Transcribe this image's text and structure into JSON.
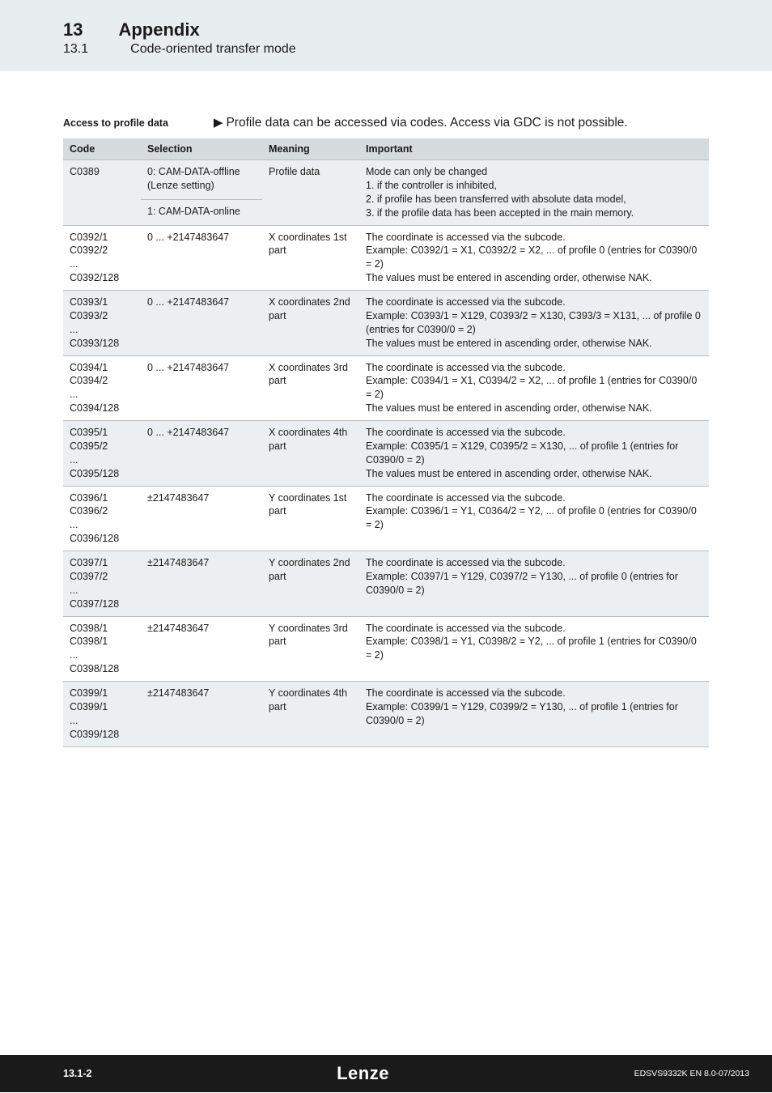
{
  "header": {
    "chapter_num": "13",
    "chapter_title": "Appendix",
    "section_num": "13.1",
    "section_title": "Code-oriented transfer mode"
  },
  "access": {
    "label": "Access to profile data",
    "text": "Profile data can be accessed via codes. Access via GDC is not possible."
  },
  "table": {
    "headers": {
      "code": "Code",
      "selection": "Selection",
      "meaning": "Meaning",
      "important": "Important"
    },
    "rows": [
      {
        "alt": true,
        "code": "C0389",
        "selection_a": "0: CAM-DATA-offline (Lenze setting)",
        "selection_b": "1: CAM-DATA-online",
        "meaning": "Profile data",
        "important": "Mode can only be changed\n1.  if the controller is inhibited,\n2.  if profile has been transferred with absolute data model,\n3.  if the profile data has been accepted in the main memory."
      },
      {
        "alt": false,
        "code": "C0392/1\nC0392/2\n...\nC0392/128",
        "selection": "0 ... +2147483647",
        "meaning": "X coordinates 1st part",
        "important": "The coordinate is accessed via the subcode.\nExample: C0392/1 = X1, C0392/2 = X2, ... of profile 0 (entries for C0390/0 = 2)\nThe values must be entered in ascending order, otherwise NAK."
      },
      {
        "alt": true,
        "code": "C0393/1\nC0393/2\n...\nC0393/128",
        "selection": "0 ... +2147483647",
        "meaning": "X coordinates 2nd part",
        "important": "The coordinate is accessed via the subcode.\nExample: C0393/1 = X129, C0393/2 = X130, C393/3 = X131, ... of profile 0 (entries for C0390/0 = 2)\nThe values must be entered in ascending order, otherwise NAK."
      },
      {
        "alt": false,
        "code": "C0394/1\nC0394/2\n...\nC0394/128",
        "selection": "0 ... +2147483647",
        "meaning": "X coordinates 3rd part",
        "important": "The coordinate is accessed via the subcode.\nExample: C0394/1 = X1, C0394/2 = X2, ... of profile 1 (entries for C0390/0 = 2)\nThe values must be entered in ascending order, otherwise NAK."
      },
      {
        "alt": true,
        "code": "C0395/1\nC0395/2\n...\nC0395/128",
        "selection": "0 ... +2147483647",
        "meaning": "X coordinates 4th part",
        "important": "The coordinate is accessed via the subcode.\nExample: C0395/1 = X129, C0395/2 = X130, ... of profile 1 (entries for C0390/0 = 2)\nThe values must be entered in ascending order, otherwise NAK."
      },
      {
        "alt": false,
        "code": "C0396/1\nC0396/2\n...\nC0396/128",
        "selection": "±2147483647",
        "meaning": "Y coordinates 1st part",
        "important": "The coordinate is accessed via the subcode.\nExample: C0396/1 = Y1, C0364/2 = Y2, ... of profile 0 (entries for C0390/0 = 2)"
      },
      {
        "alt": true,
        "code": "C0397/1\nC0397/2\n...\nC0397/128",
        "selection": "±2147483647",
        "meaning": "Y coordinates 2nd part",
        "important": "The coordinate is accessed via the subcode.\nExample: C0397/1 = Y129, C0397/2 = Y130, ... of profile 0 (entries for C0390/0 = 2)"
      },
      {
        "alt": false,
        "code": "C0398/1\nC0398/1\n...\nC0398/128",
        "selection": "±2147483647",
        "meaning": "Y coordinates 3rd part",
        "important": "The coordinate is accessed via the subcode.\nExample: C0398/1 = Y1, C0398/2 = Y2, ... of profile 1 (entries for C0390/0 = 2)"
      },
      {
        "alt": true,
        "code": "C0399/1\nC0399/1\n...\nC0399/128",
        "selection": "±2147483647",
        "meaning": "Y coordinates 4th part",
        "important": "The coordinate is accessed via the subcode.\nExample: C0399/1 = Y129, C0399/2 = Y130, ... of profile 1 (entries for C0390/0 = 2)"
      }
    ]
  },
  "footer": {
    "left": "13.1-2",
    "center": "Lenze",
    "right": "EDSVS9332K  EN  8.0-07/2013"
  }
}
